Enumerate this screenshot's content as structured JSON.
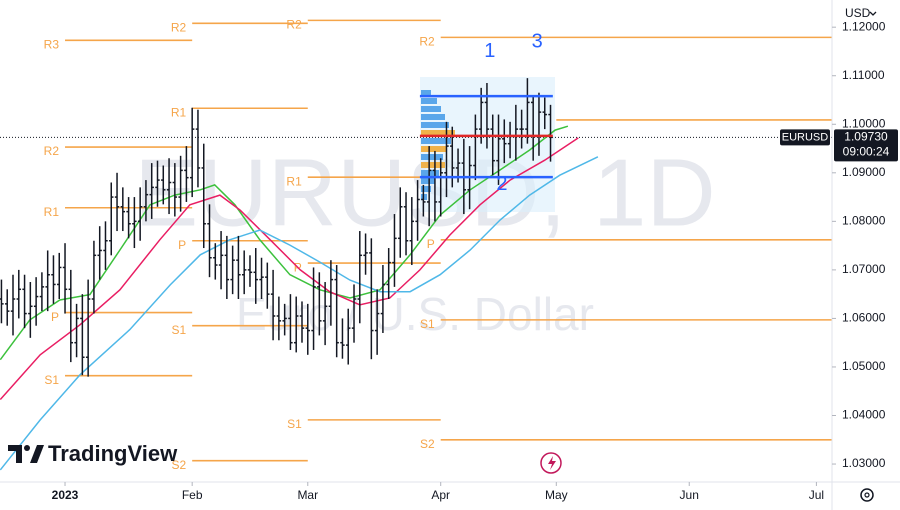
{
  "chart_data": {
    "type": "ohlc",
    "watermark": {
      "symbol": "EURUSD, 1D",
      "description": "Euro / U.S. Dollar"
    },
    "currency": "USD",
    "branding": "TradingView",
    "xlim": [
      -11.25,
      132.7
    ],
    "xticks": [
      {
        "value": 0,
        "label": "2023"
      },
      {
        "value": 22,
        "label": "Feb"
      },
      {
        "value": 42,
        "label": "Mar"
      },
      {
        "value": 65,
        "label": "Apr"
      },
      {
        "value": 85,
        "label": "May"
      },
      {
        "value": 108,
        "label": "Jun"
      },
      {
        "value": 130,
        "label": "Jul"
      }
    ],
    "ylim": [
      1.0263,
      1.1256
    ],
    "yticks": [
      {
        "value": 1.03,
        "label": "1.03000"
      },
      {
        "value": 1.04,
        "label": "1.04000"
      },
      {
        "value": 1.05,
        "label": "1.05000"
      },
      {
        "value": 1.06,
        "label": "1.06000"
      },
      {
        "value": 1.07,
        "label": "1.07000"
      },
      {
        "value": 1.08,
        "label": "1.08000"
      },
      {
        "value": 1.09,
        "label": "1.09000"
      },
      {
        "value": 1.1,
        "label": "1.10000"
      },
      {
        "value": 1.11,
        "label": "1.11000"
      },
      {
        "value": 1.12,
        "label": "1.12000"
      }
    ],
    "color": "#131722",
    "x": [
      -11,
      -10,
      -9,
      -8,
      -7,
      -6,
      -5,
      -4,
      -3,
      -2,
      -1,
      0,
      1,
      2,
      3,
      4,
      5,
      6,
      7,
      8,
      9,
      10,
      11,
      12,
      13,
      14,
      15,
      16,
      17,
      18,
      19,
      20,
      21,
      22,
      23,
      24,
      25,
      26,
      27,
      28,
      29,
      30,
      31,
      32,
      33,
      34,
      35,
      36,
      37,
      38,
      39,
      40,
      41,
      42,
      43,
      44,
      45,
      46,
      47,
      48,
      49,
      50,
      51,
      52,
      53,
      54,
      55,
      56,
      57,
      58,
      59,
      60,
      61,
      62,
      63,
      64,
      65,
      66,
      67,
      68,
      69,
      70,
      71,
      72,
      73,
      74,
      75,
      76,
      77,
      78,
      79,
      80,
      81,
      82,
      83,
      84
    ],
    "open": [
      1.064,
      1.063,
      1.0615,
      1.064,
      1.066,
      1.061,
      1.0625,
      1.0645,
      1.0665,
      1.069,
      1.067,
      1.0705,
      1.066,
      1.055,
      1.06,
      1.052,
      1.064,
      1.073,
      1.074,
      1.076,
      1.085,
      1.083,
      1.082,
      1.0795,
      1.08,
      1.083,
      1.0855,
      1.087,
      1.0885,
      1.0865,
      1.088,
      1.085,
      1.0905,
      1.089,
      1.099,
      1.091,
      1.0795,
      1.0725,
      1.071,
      1.073,
      1.068,
      1.072,
      1.069,
      1.07,
      1.0695,
      1.068,
      1.0685,
      1.065,
      1.0605,
      1.0595,
      1.06,
      1.055,
      1.0605,
      1.058,
      1.0575,
      1.0665,
      1.0595,
      1.0625,
      1.068,
      1.055,
      1.0545,
      1.058,
      1.064,
      1.073,
      1.0735,
      1.0575,
      1.061,
      1.067,
      1.0715,
      1.0765,
      1.083,
      1.076,
      1.08,
      1.0845,
      1.084,
      1.0905,
      1.084,
      1.09,
      1.0955,
      1.091,
      1.092,
      1.0865,
      1.0915,
      1.099,
      1.1045,
      1.099,
      1.0925,
      1.097,
      1.096,
      1.0975,
      1.099,
      1.099,
      1.1045,
      1.0975,
      1.1025,
      1.102
    ],
    "high": [
      1.068,
      1.066,
      1.069,
      1.07,
      1.069,
      1.0675,
      1.0685,
      1.0695,
      1.074,
      1.073,
      1.0735,
      1.0755,
      1.07,
      1.063,
      1.065,
      1.068,
      1.076,
      1.079,
      1.08,
      1.088,
      1.09,
      1.087,
      1.085,
      1.085,
      1.087,
      1.0885,
      1.092,
      1.0925,
      1.0915,
      1.093,
      1.092,
      1.0935,
      1.0955,
      1.1034,
      1.103,
      1.096,
      1.0835,
      1.0755,
      1.078,
      1.077,
      1.075,
      1.077,
      1.074,
      1.073,
      1.0745,
      1.0725,
      1.0715,
      1.07,
      1.0645,
      1.063,
      1.065,
      1.0645,
      1.0635,
      1.063,
      1.0705,
      1.0695,
      1.0675,
      1.072,
      1.071,
      1.06,
      1.062,
      1.067,
      1.078,
      1.0775,
      1.0765,
      1.066,
      1.071,
      1.0745,
      1.0815,
      1.087,
      1.086,
      1.085,
      1.0885,
      1.0875,
      1.0955,
      1.0945,
      1.093,
      1.1005,
      1.0995,
      1.095,
      1.097,
      1.0955,
      1.102,
      1.1075,
      1.1085,
      1.102,
      1.102,
      1.101,
      1.1005,
      1.104,
      1.103,
      1.1095,
      1.106,
      1.1065,
      1.1055,
      1.104
    ],
    "low": [
      1.059,
      1.0585,
      1.0565,
      1.06,
      1.058,
      1.056,
      1.0585,
      1.0615,
      1.0615,
      1.063,
      1.064,
      1.061,
      1.051,
      1.052,
      1.0483,
      1.048,
      1.061,
      1.068,
      1.07,
      1.073,
      1.078,
      1.078,
      1.0765,
      1.0745,
      1.076,
      1.08,
      1.0805,
      1.083,
      1.0835,
      1.0815,
      1.081,
      1.082,
      1.084,
      1.085,
      1.087,
      1.0745,
      1.0685,
      1.068,
      1.066,
      1.064,
      1.065,
      1.064,
      1.065,
      1.0665,
      1.063,
      1.064,
      1.062,
      1.0555,
      1.0555,
      1.0565,
      1.0535,
      1.053,
      1.055,
      1.0525,
      1.0535,
      1.0565,
      1.0545,
      1.0585,
      1.052,
      1.0517,
      1.0505,
      1.055,
      1.059,
      1.069,
      1.0516,
      1.0525,
      1.057,
      1.064,
      1.0665,
      1.0725,
      1.073,
      1.071,
      1.076,
      1.081,
      1.079,
      1.08,
      1.081,
      1.085,
      1.087,
      1.088,
      1.0815,
      1.0825,
      1.0885,
      1.096,
      1.095,
      1.0895,
      1.0875,
      1.092,
      1.093,
      1.0925,
      1.095,
      1.096,
      1.0925,
      1.0935,
      1.099,
      1.0923
    ],
    "close": [
      1.063,
      1.0615,
      1.064,
      1.066,
      1.061,
      1.0625,
      1.0645,
      1.0665,
      1.069,
      1.067,
      1.0705,
      1.066,
      1.055,
      1.06,
      1.052,
      1.064,
      1.073,
      1.074,
      1.076,
      1.085,
      1.083,
      1.082,
      1.0795,
      1.08,
      1.083,
      1.0855,
      1.087,
      1.0885,
      1.0865,
      1.088,
      1.085,
      1.0905,
      1.089,
      1.099,
      1.091,
      1.0795,
      1.0725,
      1.071,
      1.073,
      1.068,
      1.072,
      1.069,
      1.07,
      1.0695,
      1.068,
      1.0685,
      1.065,
      1.0605,
      1.0595,
      1.06,
      1.055,
      1.0605,
      1.058,
      1.0575,
      1.0665,
      1.0595,
      1.0625,
      1.068,
      1.055,
      1.0545,
      1.058,
      1.064,
      1.073,
      1.0735,
      1.0575,
      1.061,
      1.067,
      1.0715,
      1.0765,
      1.083,
      1.076,
      1.08,
      1.0845,
      1.084,
      1.0905,
      1.084,
      1.09,
      1.0955,
      1.091,
      1.092,
      1.0865,
      1.0915,
      1.099,
      1.1045,
      1.099,
      1.0925,
      1.097,
      1.096,
      1.0975,
      1.099,
      1.099,
      1.1045,
      1.0975,
      1.1025,
      1.102,
      1.0973
    ],
    "series": [
      {
        "color": "#3cc13c",
        "x": [
          -11.2,
          -6.1,
          -0.9,
          4.3,
          9.5,
          14.7,
          19.0,
          23.4,
          25.9,
          29.4,
          33.7,
          38.9,
          44.1,
          49.3,
          54.5,
          59.7,
          64.9,
          70.1,
          75.3,
          80.4,
          84.8,
          87.0
        ],
        "values": [
          1.0515,
          1.0597,
          1.0638,
          1.0649,
          1.0741,
          1.0834,
          1.0854,
          1.0865,
          1.0875,
          1.0834,
          1.0762,
          1.069,
          1.0659,
          1.0642,
          1.0659,
          1.0731,
          1.0813,
          1.0865,
          1.0906,
          1.0947,
          1.0988,
          1.0996
        ]
      },
      {
        "color": "#e91e63",
        "x": [
          -11.2,
          -4.3,
          2.6,
          9.5,
          16.4,
          21.6,
          26.8,
          30.3,
          35.5,
          40.7,
          45.8,
          51.0,
          56.2,
          61.4,
          66.6,
          71.8,
          77.0,
          83.0,
          88.8
        ],
        "values": [
          1.0433,
          1.0525,
          1.0587,
          1.0659,
          1.0762,
          1.0834,
          1.0854,
          1.0823,
          1.0762,
          1.07,
          1.0655,
          1.0628,
          1.0642,
          1.07,
          1.0772,
          1.0834,
          1.0885,
          1.0926,
          1.0972
        ]
      },
      {
        "color": "#4fb8e8",
        "x": [
          -11.2,
          -4.3,
          2.6,
          11.2,
          18.2,
          23.4,
          28.5,
          33.7,
          38.9,
          44.1,
          49.3,
          54.5,
          59.7,
          64.9,
          70.1,
          75.3,
          80.4,
          85.6,
          92.2
        ],
        "values": [
          1.0288,
          1.0391,
          1.0484,
          1.0577,
          1.0669,
          1.0731,
          1.0762,
          1.0782,
          1.0751,
          1.0716,
          1.0679,
          1.0655,
          1.0655,
          1.069,
          1.0741,
          1.0803,
          1.0854,
          1.0895,
          1.0933
        ]
      }
    ],
    "pivot_color": "#f5a54a",
    "pivots": [
      {
        "label": "R3",
        "value": 1.1173,
        "x": [
          0,
          22
        ]
      },
      {
        "label": "R2",
        "value": 1.0953,
        "x": [
          0,
          22
        ]
      },
      {
        "label": "R1",
        "value": 1.0828,
        "x": [
          0,
          22
        ]
      },
      {
        "label": "P",
        "value": 1.0612,
        "x": [
          0,
          22
        ]
      },
      {
        "label": "S1",
        "value": 1.0482,
        "x": [
          0,
          22
        ]
      },
      {
        "label": "R2",
        "value": 1.1208,
        "x": [
          22,
          42
        ]
      },
      {
        "label": "R1",
        "value": 1.1033,
        "x": [
          22,
          42
        ]
      },
      {
        "label": "P",
        "value": 1.076,
        "x": [
          22,
          42
        ]
      },
      {
        "label": "S1",
        "value": 1.0585,
        "x": [
          22,
          42
        ]
      },
      {
        "label": "S2",
        "value": 1.0307,
        "x": [
          22,
          42
        ]
      },
      {
        "label": "R2",
        "value": 1.1214,
        "x": [
          42,
          65
        ]
      },
      {
        "label": "R1",
        "value": 1.0891,
        "x": [
          42,
          65
        ]
      },
      {
        "label": "P",
        "value": 1.0714,
        "x": [
          42,
          65
        ]
      },
      {
        "label": "S1",
        "value": 1.0391,
        "x": [
          42,
          65
        ]
      },
      {
        "label": "R2",
        "value": 1.1179,
        "x": [
          65,
          132.7
        ]
      },
      {
        "label": null,
        "value": 1.1009,
        "x": [
          85,
          132.7
        ]
      },
      {
        "label": "P",
        "value": 1.0762,
        "x": [
          65,
          132.7
        ]
      },
      {
        "label": "S1",
        "value": 1.0597,
        "x": [
          65,
          132.7
        ]
      },
      {
        "label": "S2",
        "value": 1.035,
        "x": [
          65,
          132.7
        ]
      }
    ],
    "levels": [
      {
        "color": "#2962ff",
        "value": 1.1058,
        "x": [
          61.4,
          84.4
        ]
      },
      {
        "color": "#e02828",
        "value": 1.0976,
        "x": [
          61.4,
          84.4
        ]
      },
      {
        "color": "#2962ff",
        "value": 1.0891,
        "x": [
          61.4,
          84.4
        ]
      }
    ],
    "annotations": [
      {
        "text": "1",
        "x": 73.5,
        "y": 1.1149
      },
      {
        "text": "3",
        "x": 81.7,
        "y": 1.1169
      },
      {
        "text": "2",
        "x": 75.6,
        "y": 1.0875
      }
    ],
    "last_price": {
      "symbol": "EURUSD",
      "value": 1.0973,
      "label": "1.09730",
      "countdown": "09:00:24"
    }
  }
}
